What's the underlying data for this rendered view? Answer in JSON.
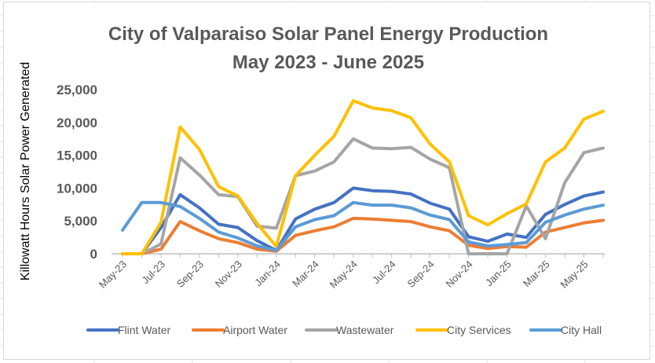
{
  "chart_data": {
    "type": "line",
    "title": "City of Valparaiso Solar Panel Energy Production",
    "subtitle": "May 2023 - June 2025",
    "xlabel": "",
    "ylabel": "Killowatt Hours Solar Power Generated",
    "ylim": [
      0,
      25000
    ],
    "yticks": [
      "0",
      "5,000",
      "10,000",
      "15,000",
      "20,000",
      "25,000"
    ],
    "ytick_values": [
      0,
      5000,
      10000,
      15000,
      20000,
      25000
    ],
    "grid": false,
    "legend": "bottom",
    "categories": [
      "May-23",
      "Jun-23",
      "Jul-23",
      "Aug-23",
      "Sep-23",
      "Oct-23",
      "Nov-23",
      "Dec-23",
      "Jan-24",
      "Feb-24",
      "Mar-24",
      "Apr-24",
      "May-24",
      "Jun-24",
      "Jul-24",
      "Aug-24",
      "Sep-24",
      "Oct-24",
      "Nov-24",
      "Dec-24",
      "Jan-25",
      "Feb-25",
      "Mar-25",
      "Apr-25",
      "May-25",
      "Jun-25"
    ],
    "xtick_labels": [
      "May-23",
      "Jul-23",
      "Sep-23",
      "Nov-23",
      "Jan-24",
      "Mar-24",
      "May-24",
      "Jul-24",
      "Sep-24",
      "Nov-24",
      "Jan-25",
      "Mar-25",
      "May-25"
    ],
    "xtick_index": [
      0,
      2,
      4,
      6,
      8,
      10,
      12,
      14,
      16,
      18,
      20,
      22,
      24
    ],
    "series": [
      {
        "name": "Flint Water",
        "color": "#4472C4",
        "values": [
          0,
          0,
          4000,
          9000,
          7000,
          4500,
          4000,
          2000,
          500,
          5300,
          6800,
          7800,
          10000,
          9600,
          9500,
          9100,
          7700,
          6800,
          2600,
          1900,
          3000,
          2500,
          6000,
          7500,
          8800,
          9400
        ]
      },
      {
        "name": "Airport Water",
        "color": "#ED7D31",
        "values": [
          0,
          0,
          700,
          4900,
          3500,
          2300,
          1700,
          700,
          400,
          2800,
          3500,
          4100,
          5400,
          5300,
          5100,
          4900,
          4100,
          3500,
          1300,
          800,
          1100,
          1000,
          3300,
          4000,
          4700,
          5100
        ]
      },
      {
        "name": "Wastewater",
        "color": "#A5A5A5",
        "values": [
          0,
          0,
          1500,
          14600,
          12000,
          9000,
          8700,
          4200,
          3900,
          11900,
          12600,
          14000,
          17500,
          16100,
          16000,
          16200,
          14400,
          13100,
          0,
          0,
          0,
          7300,
          2300,
          10800,
          15400,
          16100
        ]
      },
      {
        "name": "City Services",
        "color": "#FFC000",
        "values": [
          0,
          0,
          4800,
          19300,
          15900,
          10200,
          8800,
          4600,
          1100,
          11900,
          15000,
          17900,
          23300,
          22200,
          21800,
          20700,
          16700,
          14000,
          5800,
          4400,
          6100,
          7600,
          14000,
          16100,
          20500,
          21700
        ]
      },
      {
        "name": "City Hall",
        "color": "#5B9BD5",
        "values": [
          3600,
          7800,
          7800,
          7200,
          5400,
          3300,
          2400,
          1200,
          500,
          4100,
          5200,
          5800,
          7800,
          7400,
          7400,
          7000,
          5900,
          5200,
          1800,
          1200,
          1400,
          1700,
          4800,
          5900,
          6800,
          7400
        ]
      }
    ]
  }
}
